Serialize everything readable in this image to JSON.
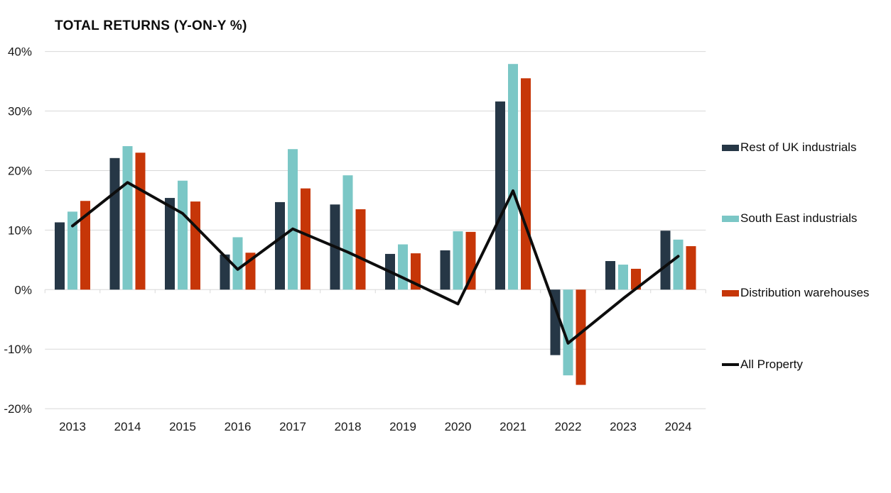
{
  "title": "TOTAL RETURNS (Y-ON-Y %)",
  "chart_data": {
    "type": "bar",
    "title": "TOTAL RETURNS (Y-ON-Y %)",
    "categories": [
      "2013",
      "2014",
      "2015",
      "2016",
      "2017",
      "2018",
      "2019",
      "2020",
      "2021",
      "2022",
      "2023",
      "2024"
    ],
    "series": [
      {
        "name": "Rest of UK industrials",
        "type": "bar",
        "color": "#263746",
        "values": [
          11.3,
          22.1,
          15.4,
          5.9,
          14.7,
          14.3,
          6.0,
          6.6,
          31.6,
          -11.0,
          4.8,
          9.9
        ]
      },
      {
        "name": "South East industrials",
        "type": "bar",
        "color": "#7BC7C6",
        "values": [
          13.1,
          24.1,
          18.3,
          8.8,
          23.6,
          19.2,
          7.6,
          9.8,
          37.9,
          -14.4,
          4.2,
          8.4
        ]
      },
      {
        "name": "Distribution warehouses",
        "type": "bar",
        "color": "#C63608",
        "values": [
          14.9,
          23.0,
          14.8,
          6.2,
          17.0,
          13.5,
          6.1,
          9.7,
          35.5,
          -16.0,
          3.5,
          7.3
        ]
      },
      {
        "name": "All Property",
        "type": "line",
        "color": "#0D0D0D",
        "values": [
          10.7,
          18.0,
          12.8,
          3.4,
          10.2,
          6.3,
          2.0,
          -2.4,
          16.6,
          -9.0,
          -1.5,
          5.6
        ]
      }
    ],
    "xlabel": "",
    "ylabel": "",
    "ylim": [
      -20,
      40
    ],
    "yticks": [
      40,
      30,
      20,
      10,
      0,
      -10,
      -20
    ],
    "ytick_labels": [
      "40%",
      "30%",
      "20%",
      "10%",
      "0%",
      "-10%",
      "-20%"
    ],
    "grid": true,
    "grid_color": "#D8D8D8",
    "legend_position": "right"
  }
}
